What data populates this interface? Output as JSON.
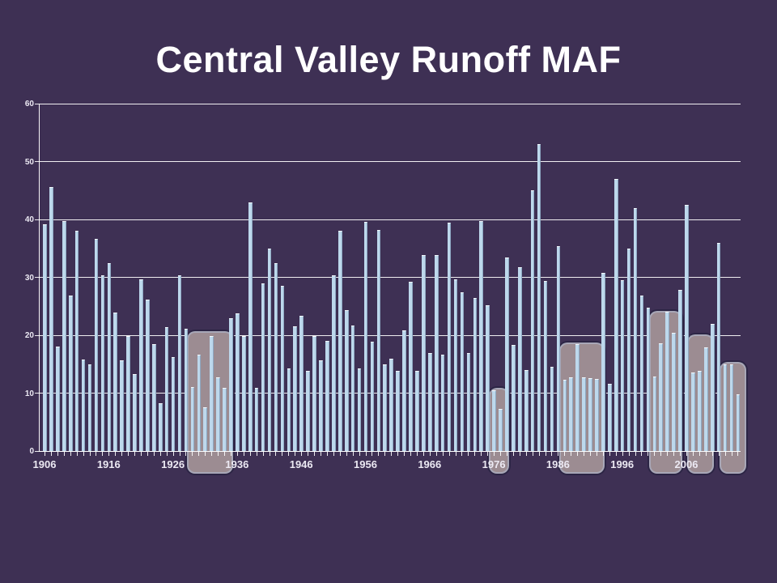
{
  "slide": {
    "title": "Central Valley Runoff MAF"
  },
  "chart_data": {
    "type": "bar",
    "title": "Central Valley Runoff MAF",
    "xlabel": "",
    "ylabel": "",
    "units": "MAF (million acre-feet)",
    "ylim": [
      0,
      60
    ],
    "yticks": [
      0,
      10,
      20,
      30,
      40,
      50,
      60
    ],
    "xtick_labels": [
      "1906",
      "1916",
      "1926",
      "1936",
      "1946",
      "1956",
      "1966",
      "1976",
      "1986",
      "1996",
      "2006"
    ],
    "grid": "horizontal white gridlines every 10 units",
    "legend": "none",
    "bar_color": "#bdd8ec",
    "years": [
      1906,
      1907,
      1908,
      1909,
      1910,
      1911,
      1912,
      1913,
      1914,
      1915,
      1916,
      1917,
      1918,
      1919,
      1920,
      1921,
      1922,
      1923,
      1924,
      1925,
      1926,
      1927,
      1928,
      1929,
      1930,
      1931,
      1932,
      1933,
      1934,
      1935,
      1936,
      1937,
      1938,
      1939,
      1940,
      1941,
      1942,
      1943,
      1944,
      1945,
      1946,
      1947,
      1948,
      1949,
      1950,
      1951,
      1952,
      1953,
      1954,
      1955,
      1956,
      1957,
      1958,
      1959,
      1960,
      1961,
      1962,
      1963,
      1964,
      1965,
      1966,
      1967,
      1968,
      1969,
      1970,
      1971,
      1972,
      1973,
      1974,
      1975,
      1976,
      1977,
      1978,
      1979,
      1980,
      1981,
      1982,
      1983,
      1984,
      1985,
      1986,
      1987,
      1988,
      1989,
      1990,
      1991,
      1992,
      1993,
      1994,
      1995,
      1996,
      1997,
      1998,
      1999,
      2000,
      2001,
      2002,
      2003,
      2004,
      2005,
      2006,
      2007,
      2008,
      2009,
      2010,
      2011,
      2012,
      2013,
      2014
    ],
    "values": [
      39.2,
      45.6,
      18.0,
      39.7,
      26.8,
      38.0,
      15.8,
      15.0,
      36.6,
      30.3,
      32.4,
      23.9,
      15.6,
      19.9,
      13.3,
      29.6,
      26.2,
      18.5,
      8.2,
      21.4,
      16.2,
      30.3,
      21.1,
      11.0,
      16.7,
      7.6,
      19.9,
      12.7,
      10.9,
      22.9,
      23.8,
      19.9,
      43.0,
      10.9,
      29.0,
      35.0,
      32.5,
      28.5,
      14.3,
      21.5,
      23.3,
      13.8,
      19.9,
      15.7,
      19.0,
      30.4,
      38.0,
      24.3,
      21.7,
      14.3,
      39.6,
      18.9,
      38.2,
      14.9,
      15.9,
      13.9,
      20.8,
      29.3,
      13.9,
      33.8,
      16.9,
      33.8,
      16.6,
      39.4,
      29.7,
      27.4,
      16.9,
      26.4,
      39.7,
      25.2,
      10.5,
      7.3,
      33.4,
      18.3,
      31.7,
      14.0,
      45.0,
      53.0,
      29.4,
      14.6,
      35.4,
      12.3,
      12.7,
      18.5,
      12.7,
      12.6,
      12.4,
      30.7,
      11.6,
      47.0,
      29.5,
      35.0,
      41.9,
      26.9,
      24.8,
      12.9,
      18.6,
      24.1,
      20.4,
      27.9,
      42.5,
      13.5,
      13.8,
      17.9,
      21.9,
      36.0,
      15.0,
      15.0,
      9.8
    ],
    "highlight_boxes": [
      {
        "start_year": 1929,
        "end_year": 1934,
        "top_value": 20.7
      },
      {
        "start_year": 1976,
        "end_year": 1977,
        "top_value": 10.9
      },
      {
        "start_year": 1987,
        "end_year": 1992,
        "top_value": 18.7
      },
      {
        "start_year": 2001,
        "end_year": 2004,
        "top_value": 24.2
      },
      {
        "start_year": 2007,
        "end_year": 2009,
        "top_value": 20.2
      },
      {
        "start_year": 2012,
        "end_year": 2014,
        "top_value": 15.4
      }
    ]
  },
  "colors": {
    "background": "#3e3054",
    "bar": "#bdd8ec",
    "gridline": "#ffffff",
    "text": "#ffffff",
    "highlight_fill": "#9c8c92"
  }
}
